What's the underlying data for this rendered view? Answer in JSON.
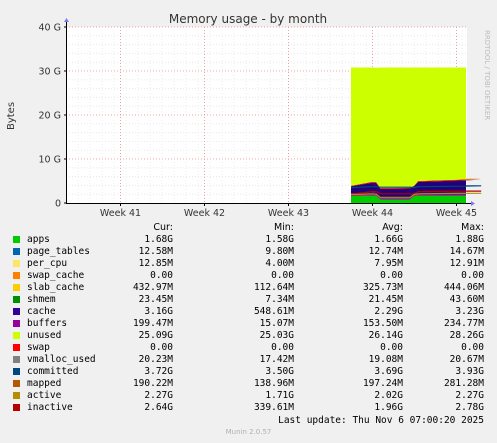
{
  "chart_data": {
    "type": "area",
    "title": "Memory usage - by month",
    "ylabel": "Bytes",
    "side_text": "RRDTOOL / TOBI OETIKER",
    "ylim": [
      0,
      40
    ],
    "yticks": [
      0,
      10,
      20,
      30,
      40
    ],
    "ytick_labels": [
      "0",
      "10 G",
      "20 G",
      "30 G",
      "40 G"
    ],
    "x_axis_labels": [
      "Week 41",
      "Week 42",
      "Week 43",
      "Week 44",
      "Week 45"
    ],
    "data_start_week": 43.75,
    "stack_gb": {
      "x_weeks": [
        43.75,
        44.0,
        44.05,
        44.1,
        44.45,
        44.5,
        44.55,
        45.0,
        45.3
      ],
      "apps": [
        1.6,
        1.7,
        1.65,
        0.8,
        0.8,
        1.6,
        1.7,
        1.7,
        1.7
      ],
      "shmem": [
        0.3,
        0.4,
        0.3,
        0.3,
        0.3,
        0.3,
        0.4,
        0.4,
        0.4
      ],
      "slab_cache": [
        0.3,
        0.3,
        0.3,
        0.3,
        0.3,
        0.4,
        0.4,
        0.4,
        0.4
      ],
      "cache": [
        1.6,
        2.2,
        2.3,
        1.8,
        1.9,
        1.5,
        2.3,
        2.6,
        2.8
      ],
      "buffers": [
        0.1,
        0.2,
        0.2,
        0.2,
        0.2,
        0.1,
        0.2,
        0.2,
        0.2
      ],
      "unused": [
        26.9,
        26.0,
        26.0,
        27.4,
        27.3,
        26.9,
        25.8,
        25.5,
        25.3
      ],
      "total": 30.8
    },
    "line_gb": {
      "inactive": [
        2.0,
        2.6,
        2.6,
        2.1,
        2.1,
        2.0,
        2.6,
        2.7,
        2.7
      ],
      "active": [
        1.9,
        2.1,
        2.0,
        1.2,
        1.2,
        1.9,
        2.1,
        2.2,
        2.2
      ],
      "committed": [
        3.5,
        3.7,
        3.7,
        3.6,
        3.6,
        3.5,
        3.7,
        3.8,
        3.9
      ]
    },
    "series": [
      {
        "name": "apps",
        "color": "#00cc00",
        "cur": "1.68G",
        "min": "1.58G",
        "avg": "1.66G",
        "max": "1.88G"
      },
      {
        "name": "page_tables",
        "color": "#0066b3",
        "cur": "12.58M",
        "min": "9.80M",
        "avg": "12.74M",
        "max": "14.67M"
      },
      {
        "name": "per_cpu",
        "color": "#ff8000",
        "cur": "12.85M",
        "min": "4.00M",
        "avg": "7.95M",
        "max": "12.91M"
      },
      {
        "name": "swap_cache",
        "color": "#ffcc00",
        "cur": "0.00",
        "min": "0.00",
        "avg": "0.00",
        "max": "0.00"
      },
      {
        "name": "slab_cache",
        "color": "#330099",
        "cur": "432.97M",
        "min": "112.64M",
        "avg": "325.73M",
        "max": "444.06M"
      },
      {
        "name": "shmem",
        "color": "#990099",
        "cur": "23.45M",
        "min": "7.34M",
        "avg": "21.45M",
        "max": "43.60M"
      },
      {
        "name": "cache",
        "color": "#ccff00",
        "cur": "3.16G",
        "min": "548.61M",
        "avg": "2.29G",
        "max": "3.23G"
      },
      {
        "name": "buffers",
        "color": "#ff0000",
        "cur": "199.47M",
        "min": "15.07M",
        "avg": "153.50M",
        "max": "234.77M"
      },
      {
        "name": "unused",
        "color": "#808080",
        "cur": "25.09G",
        "min": "25.03G",
        "avg": "26.14G",
        "max": "28.26G"
      },
      {
        "name": "swap",
        "color": "#008f00",
        "cur": "0.00",
        "min": "0.00",
        "avg": "0.00",
        "max": "0.00"
      },
      {
        "name": "vmalloc_used",
        "color": "#00487d",
        "cur": "20.23M",
        "min": "17.42M",
        "avg": "19.08M",
        "max": "20.67M"
      },
      {
        "name": "committed",
        "color": "#b35a00",
        "cur": "3.72G",
        "min": "3.50G",
        "avg": "3.69G",
        "max": "3.93G"
      },
      {
        "name": "mapped",
        "color": "#b38f00",
        "cur": "190.22M",
        "min": "138.96M",
        "avg": "197.24M",
        "max": "281.28M"
      },
      {
        "name": "active",
        "color": "#6b006b",
        "cur": "2.27G",
        "min": "1.71G",
        "avg": "2.02G",
        "max": "2.27G"
      },
      {
        "name": "inactive",
        "color": "#8fb300",
        "cur": "2.64G",
        "min": "339.61M",
        "avg": "1.96G",
        "max": "2.78G"
      }
    ],
    "legend_swatch_colors": [
      "#00cc00",
      "#0066b3",
      "#ffe566",
      "#ff8000",
      "#ffcc00",
      "#008f00",
      "#330099",
      "#990099",
      "#ccff00",
      "#ff0000",
      "#808080",
      "#00487d",
      "#b35a00",
      "#b38f00",
      "#b30000"
    ]
  },
  "legend_header": {
    "cur": "Cur:",
    "min": "Min:",
    "avg": "Avg:",
    "max": "Max:"
  },
  "footer": {
    "last_update": "Last update: Thu Nov  6 07:00:20 2025",
    "version": "Munin 2.0.57"
  }
}
